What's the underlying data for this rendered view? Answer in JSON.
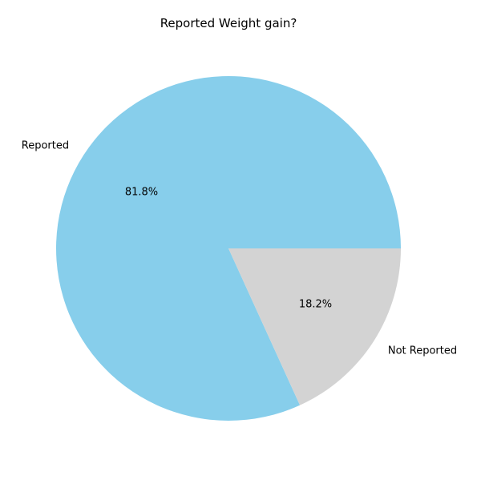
{
  "chart_data": {
    "type": "pie",
    "title": "Reported Weight gain?",
    "slices": [
      {
        "label": "Reported",
        "value": 81.8,
        "value_label": "81.8%",
        "color": "#87ceeb"
      },
      {
        "label": "Not Reported",
        "value": 18.2,
        "value_label": "18.2%",
        "color": "#d3d3d3"
      }
    ],
    "start_angle_deg": 0,
    "direction": "counterclockwise"
  }
}
